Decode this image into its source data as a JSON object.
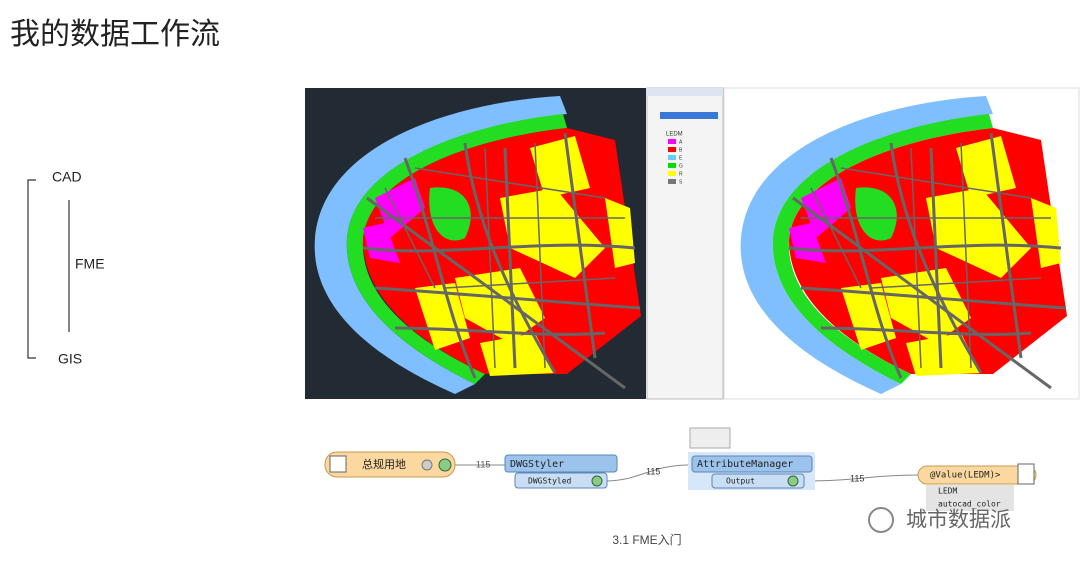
{
  "slide": {
    "title": "我的数据工作流",
    "source": "CAD",
    "tool": "FME",
    "target": "GIS",
    "caption": "3.1 FME入门",
    "watermark": "城市数据派"
  },
  "layers_panel": {
    "root": "LEDM",
    "items": [
      {
        "label": "A",
        "color": "#ff00ff"
      },
      {
        "label": "B",
        "color": "#ff0000"
      },
      {
        "label": "E",
        "color": "#66ccff"
      },
      {
        "label": "G",
        "color": "#00e000"
      },
      {
        "label": "R",
        "color": "#ffff00"
      },
      {
        "label": "S",
        "color": "#777777"
      }
    ]
  },
  "workflow": {
    "reader": "总规用地",
    "styler": "DWGStyler",
    "styler_port": "DWGStyled",
    "manager": "AttributeManager",
    "manager_port": "Output",
    "writer": "@Value(LEDM)>",
    "writer_attributes": [
      "LEDM",
      "autocad_color"
    ],
    "counts": [
      115,
      115,
      115
    ]
  }
}
